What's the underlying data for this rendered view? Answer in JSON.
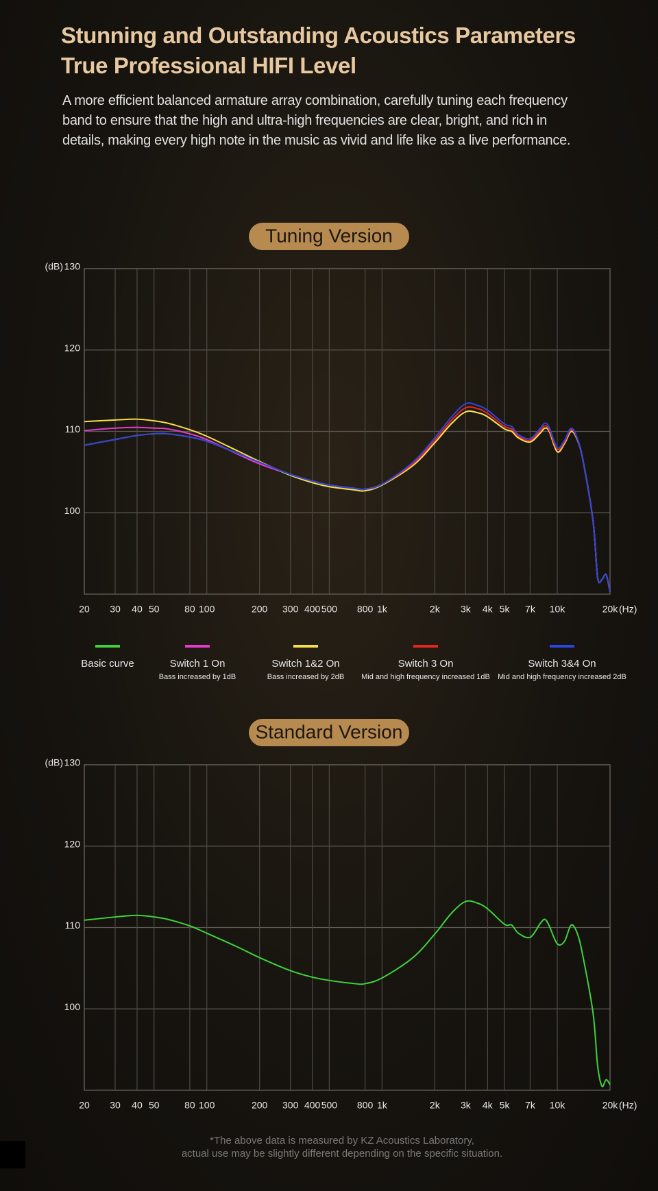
{
  "header": {
    "title": [
      "Stunning and Outstanding Acoustics Parameters",
      "True Professional HIFI Level"
    ],
    "text": "A more efficient balanced armature array combination, carefully tuning each frequency band to ensure that the high and ultra-high frequencies are clear, bright, and rich in details, making every high note in the music as vivid and life like as a live performance."
  },
  "chart_data": [
    {
      "type": "line",
      "title": "Tuning Version",
      "y_label": "(dB)",
      "x_label": "(Hz)",
      "log_x": true,
      "grid": true,
      "legend": "bottom",
      "xlim": [
        20,
        20000
      ],
      "ylim": [
        90,
        130
      ],
      "xticks": [
        20,
        30,
        40,
        50,
        80,
        100,
        200,
        300,
        400,
        500,
        800,
        {
          "value": 1000,
          "label": "1k"
        },
        {
          "value": 2000,
          "label": "2k"
        },
        {
          "value": 3000,
          "label": "3k"
        },
        {
          "value": 4000,
          "label": "4k"
        },
        {
          "value": 5000,
          "label": "5k"
        },
        {
          "value": 7000,
          "label": "7k"
        },
        {
          "value": 10000,
          "label": "10k"
        },
        {
          "value": 20000,
          "label": "20k"
        }
      ],
      "yticks": [
        100,
        110,
        120,
        130
      ],
      "x": [
        20,
        30,
        40,
        50,
        60,
        80,
        100,
        150,
        200,
        300,
        400,
        500,
        700,
        800,
        1000,
        1500,
        2000,
        2500,
        3000,
        3500,
        4000,
        5000,
        5500,
        6000,
        7000,
        8000,
        8500,
        9000,
        10000,
        11000,
        12000,
        13000,
        14000,
        16000,
        17000,
        18000,
        19000,
        20000
      ],
      "series": [
        {
          "name": "Basic curve",
          "color": "#3fd23a",
          "values": [
            108.3,
            109.0,
            109.5,
            109.7,
            109.7,
            109.3,
            108.8,
            107.3,
            106.2,
            104.7,
            103.9,
            103.4,
            103.0,
            102.9,
            103.5,
            105.8,
            108.6,
            111.0,
            112.4,
            112.3,
            111.8,
            110.3,
            110.0,
            109.2,
            108.7,
            109.8,
            110.4,
            110.0,
            107.5,
            108.5,
            110.0,
            109.0,
            106.5,
            99.0,
            92.0,
            91.8,
            92.4,
            90.3
          ]
        },
        {
          "name": "Switch 1 On",
          "description": "Bass increased by 1dB",
          "color": "#e63bd0",
          "values": [
            110.1,
            110.4,
            110.5,
            110.4,
            110.3,
            109.7,
            109.0,
            107.2,
            106.0,
            104.7,
            103.9,
            103.4,
            103.0,
            102.9,
            103.5,
            105.8,
            108.6,
            111.0,
            112.4,
            112.3,
            111.8,
            110.3,
            110.0,
            109.2,
            108.7,
            109.8,
            110.4,
            110.0,
            107.5,
            108.5,
            110.0,
            109.0,
            106.5,
            99.0,
            92.0,
            91.8,
            92.4,
            90.3
          ]
        },
        {
          "name": "Switch 1&2 On",
          "description": "Bass increased by 2dB",
          "color": "#f6e04a",
          "values": [
            111.2,
            111.4,
            111.5,
            111.3,
            111.0,
            110.2,
            109.4,
            107.6,
            106.3,
            104.6,
            103.7,
            103.2,
            102.8,
            102.7,
            103.4,
            105.8,
            108.6,
            111.0,
            112.4,
            112.3,
            111.8,
            110.3,
            110.0,
            109.2,
            108.7,
            109.8,
            110.4,
            110.0,
            107.5,
            108.5,
            110.0,
            109.0,
            106.5,
            99.0,
            92.0,
            91.8,
            92.4,
            90.3
          ]
        },
        {
          "name": "Switch 3 On",
          "description": "Mid and high frequency increased 1dB",
          "color": "#e8261e",
          "values": [
            108.3,
            109.0,
            109.5,
            109.7,
            109.7,
            109.3,
            108.8,
            107.3,
            106.2,
            104.7,
            103.9,
            103.4,
            103.0,
            102.9,
            103.5,
            106.0,
            108.9,
            111.4,
            112.9,
            112.8,
            112.2,
            110.6,
            110.3,
            109.4,
            108.9,
            110.1,
            110.7,
            110.2,
            107.8,
            108.7,
            110.2,
            109.1,
            106.5,
            99.0,
            92.0,
            91.8,
            92.4,
            90.3
          ]
        },
        {
          "name": "Switch 3&4 On",
          "description": "Mid and high frequency increased 2dB",
          "color": "#2b46e2",
          "values": [
            108.3,
            109.0,
            109.5,
            109.7,
            109.7,
            109.3,
            108.8,
            107.3,
            106.2,
            104.7,
            103.9,
            103.4,
            103.0,
            102.9,
            103.5,
            106.2,
            109.2,
            111.8,
            113.4,
            113.2,
            112.6,
            110.9,
            110.6,
            109.6,
            109.1,
            110.4,
            111.0,
            110.5,
            108.0,
            108.9,
            110.4,
            109.2,
            106.5,
            99.0,
            92.0,
            91.8,
            92.4,
            90.3
          ]
        }
      ]
    },
    {
      "type": "line",
      "title": "Standard Version",
      "y_label": "(dB)",
      "x_label": "(Hz)",
      "log_x": true,
      "grid": true,
      "xlim": [
        20,
        20000
      ],
      "ylim": [
        90,
        130
      ],
      "xticks": [
        20,
        30,
        40,
        50,
        80,
        100,
        200,
        300,
        400,
        500,
        800,
        {
          "value": 1000,
          "label": "1k"
        },
        {
          "value": 2000,
          "label": "2k"
        },
        {
          "value": 3000,
          "label": "3k"
        },
        {
          "value": 4000,
          "label": "4k"
        },
        {
          "value": 5000,
          "label": "5k"
        },
        {
          "value": 7000,
          "label": "7k"
        },
        {
          "value": 10000,
          "label": "10k"
        },
        {
          "value": 20000,
          "label": "20k"
        }
      ],
      "yticks": [
        100,
        110,
        120,
        130
      ],
      "x": [
        20,
        30,
        40,
        50,
        60,
        80,
        100,
        150,
        200,
        300,
        400,
        500,
        700,
        800,
        1000,
        1500,
        2000,
        2500,
        3000,
        3500,
        4000,
        5000,
        5500,
        6000,
        7000,
        8000,
        8500,
        9000,
        10000,
        11000,
        12000,
        13000,
        14000,
        16000,
        17000,
        18000,
        19000,
        20000
      ],
      "series": [
        {
          "color": "#3fd23a",
          "values": [
            110.9,
            111.3,
            111.5,
            111.3,
            111.0,
            110.2,
            109.3,
            107.6,
            106.3,
            104.7,
            103.9,
            103.5,
            103.1,
            103.1,
            103.8,
            106.3,
            109.2,
            111.8,
            113.2,
            113.0,
            112.3,
            110.4,
            110.3,
            109.3,
            108.8,
            110.5,
            111.0,
            110.2,
            108.0,
            108.3,
            110.3,
            109.3,
            106.5,
            99.5,
            93.0,
            90.5,
            91.3,
            90.7
          ]
        }
      ]
    }
  ],
  "footnote": [
    "*The above data is measured by KZ Acoustics Laboratory,",
    "actual use may be slightly different depending on the specific situation."
  ]
}
